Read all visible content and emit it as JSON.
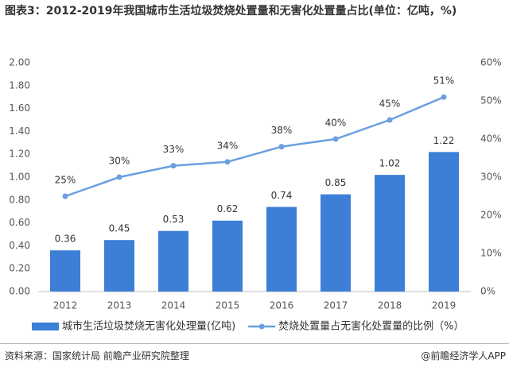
{
  "chart_data": {
    "type": "combo",
    "title": "图表3：2012-2019年我国城市生活垃圾焚烧处置量和无害化处置量占比(单位：亿吨，%)",
    "source": "资料来源：国家统计局 前瞻产业研究院整理",
    "brand": "@前瞻经济学人APP",
    "categories": [
      "2012",
      "2013",
      "2014",
      "2015",
      "2016",
      "2017",
      "2018",
      "2019"
    ],
    "series": [
      {
        "name": "城市生活垃圾焚烧无害化处理量(亿吨)",
        "type": "bar",
        "color": "#3d7fd6",
        "values": [
          0.36,
          0.45,
          0.53,
          0.62,
          0.74,
          0.85,
          1.02,
          1.22
        ]
      },
      {
        "name": "焚烧处置量占无害化处置量的比例（%）",
        "type": "line",
        "axis": "y2",
        "color": "#6a9fe0",
        "values": [
          25,
          30,
          33,
          34,
          38,
          40,
          45,
          51
        ],
        "value_labels": [
          "25%",
          "30%",
          "33%",
          "34%",
          "38%",
          "40%",
          "45%",
          "51%"
        ]
      }
    ],
    "ylim": [
      0,
      2
    ],
    "yticks": [
      {
        "value": 0,
        "label": "0.00"
      },
      {
        "value": 0.2,
        "label": "0.20"
      },
      {
        "value": 0.4,
        "label": "0.40"
      },
      {
        "value": 0.6,
        "label": "0.60"
      },
      {
        "value": 0.8,
        "label": "0.80"
      },
      {
        "value": 1,
        "label": "1.00"
      },
      {
        "value": 1.2,
        "label": "1.20"
      },
      {
        "value": 1.4,
        "label": "1.40"
      },
      {
        "value": 1.6,
        "label": "1.60"
      },
      {
        "value": 1.8,
        "label": "1.80"
      },
      {
        "value": 2,
        "label": "2.00"
      }
    ],
    "y2lim": [
      0,
      60
    ],
    "y2ticks": [
      {
        "value": 0,
        "label": "0%"
      },
      {
        "value": 10,
        "label": "10%"
      },
      {
        "value": 20,
        "label": "20%"
      },
      {
        "value": 30,
        "label": "30%"
      },
      {
        "value": 40,
        "label": "40%"
      },
      {
        "value": 50,
        "label": "50%"
      },
      {
        "value": 60,
        "label": "60%"
      }
    ],
    "grid": false
  }
}
